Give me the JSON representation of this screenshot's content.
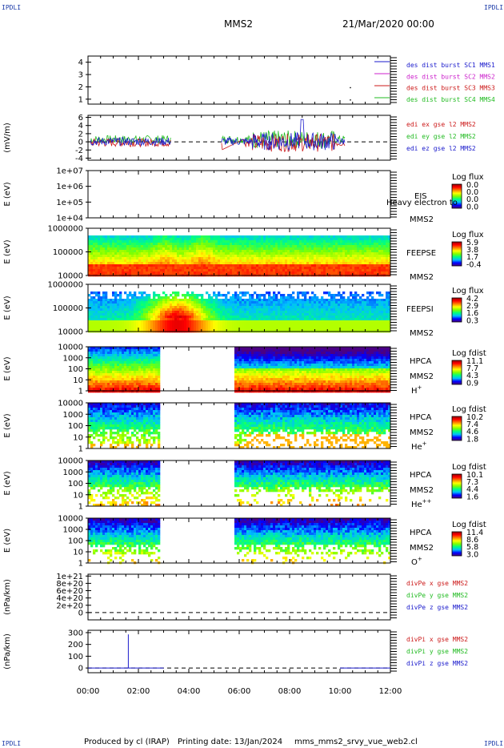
{
  "header": {
    "corner_label": "IPDLI",
    "spacecraft": "MMS2",
    "date": "21/Mar/2020 00:00"
  },
  "footer": {
    "produced": "Produced by cl (IRAP)",
    "printing": "Printing date: 13/Jan/2024",
    "script": "mms_mms2_srvy_vue_web2.cl"
  },
  "chart_data": [
    {
      "type": "line",
      "panel": "burst-flags",
      "yticks": [
        "1",
        "2",
        "3",
        "4"
      ],
      "ylim": [
        0.6,
        4.5
      ],
      "legend": [
        {
          "text": "des dist burst SC1 MMS1",
          "color": "#1a1acc"
        },
        {
          "text": "des dist burst SC2 MMS2",
          "color": "#cc22cc"
        },
        {
          "text": "des dist burst SC3 MMS3",
          "color": "#cc1a1a"
        },
        {
          "text": "des dist burst SC4 MMS4",
          "color": "#22bb22"
        }
      ]
    },
    {
      "type": "line",
      "panel": "edi-e-field",
      "ylabel": "(mV/m)",
      "yticks": [
        "-4",
        "-2",
        "0",
        "2",
        "4",
        "6"
      ],
      "ylim": [
        -4.5,
        6.5
      ],
      "legend": [
        {
          "text": "edi ex gse l2 MMS2",
          "color": "#cc1a1a"
        },
        {
          "text": "edi ey gse l2 MMS2",
          "color": "#22bb22"
        },
        {
          "text": "edi ez gse l2 MMS2",
          "color": "#1a1acc"
        }
      ]
    },
    {
      "type": "heatmap",
      "panel": "eis",
      "ylabel": "E (eV)",
      "yticks": [
        "1e+04",
        "1e+05",
        "1e+06",
        "1e+07"
      ],
      "labels": [
        "EIS",
        "MMS2"
      ],
      "overlay_text": "Heavy electron to",
      "cb_title": "Log flux",
      "cb_ticks": [
        "0.0",
        "0.0",
        "0.0",
        "0.0"
      ]
    },
    {
      "type": "heatmap",
      "panel": "feepse",
      "ylabel": "E (eV)",
      "yticks": [
        "10000",
        "100000",
        "1000000"
      ],
      "labels": [
        "FEEPSE",
        "MMS2"
      ],
      "cb_title": "Log flux",
      "cb_ticks": [
        "5.9",
        "3.8",
        "1.7",
        "-0.4"
      ]
    },
    {
      "type": "heatmap",
      "panel": "feepsi",
      "ylabel": "E (eV)",
      "yticks": [
        "10000",
        "100000",
        "1000000"
      ],
      "labels": [
        "FEEPSI",
        "MMS2"
      ],
      "cb_title": "Log flux",
      "cb_ticks": [
        "4.2",
        "2.9",
        "1.6",
        "0.3"
      ]
    },
    {
      "type": "heatmap",
      "panel": "hpca-h",
      "ylabel": "E (eV)",
      "yticks": [
        "1",
        "10",
        "100",
        "1000",
        "10000"
      ],
      "labels": [
        "HPCA",
        "MMS2"
      ],
      "species": "H",
      "species_sup": "+",
      "cb_title": "Log fdist",
      "cb_ticks": [
        "11.1",
        "7.7",
        "4.3",
        "0.9"
      ]
    },
    {
      "type": "heatmap",
      "panel": "hpca-he",
      "ylabel": "E (eV)",
      "yticks": [
        "1",
        "10",
        "100",
        "1000",
        "10000"
      ],
      "labels": [
        "HPCA",
        "MMS2"
      ],
      "species": "He",
      "species_sup": "+",
      "cb_title": "Log fdist",
      "cb_ticks": [
        "10.2",
        "7.4",
        "4.6",
        "1.8"
      ]
    },
    {
      "type": "heatmap",
      "panel": "hpca-he2",
      "ylabel": "E (eV)",
      "yticks": [
        "1",
        "10",
        "100",
        "1000",
        "10000"
      ],
      "labels": [
        "HPCA",
        "MMS2"
      ],
      "species": "He",
      "species_sup": "++",
      "cb_title": "Log fdist",
      "cb_ticks": [
        "10.1",
        "7.3",
        "4.4",
        "1.6"
      ]
    },
    {
      "type": "heatmap",
      "panel": "hpca-o",
      "ylabel": "E (eV)",
      "yticks": [
        "1",
        "10",
        "100",
        "1000",
        "10000"
      ],
      "labels": [
        "HPCA",
        "MMS2"
      ],
      "species": "O",
      "species_sup": "+",
      "cb_title": "Log fdist",
      "cb_ticks": [
        "11.4",
        "8.6",
        "5.8",
        "3.0"
      ]
    },
    {
      "type": "line",
      "panel": "divpe",
      "ylabel": "(nPa/km)",
      "yticks": [
        "0",
        "2e+20",
        "4e+20",
        "6e+20",
        "8e+20",
        "1e+21"
      ],
      "ylim": [
        -0.2,
        1.05
      ],
      "legend": [
        {
          "text": "divPe x gse MMS2",
          "color": "#cc1a1a"
        },
        {
          "text": "divPe y gse MMS2",
          "color": "#22bb22"
        },
        {
          "text": "divPe z gse MMS2",
          "color": "#1a1acc"
        }
      ]
    },
    {
      "type": "line",
      "panel": "divpi",
      "ylabel": "(nPa/km)",
      "yticks": [
        "0",
        "100",
        "200",
        "300"
      ],
      "ylim": [
        -40,
        320
      ],
      "spike": {
        "x_hours": 1.6,
        "y": 285
      },
      "legend": [
        {
          "text": "divPi x gse MMS2",
          "color": "#cc1a1a"
        },
        {
          "text": "divPi y gse MMS2",
          "color": "#22bb22"
        },
        {
          "text": "divPi z gse MMS2",
          "color": "#1a1acc"
        }
      ]
    }
  ],
  "time_axis": {
    "ticks": [
      "00:00",
      "02:00",
      "04:00",
      "06:00",
      "08:00",
      "10:00",
      "12:00"
    ],
    "range_hours": [
      0,
      12
    ]
  },
  "colors": {
    "axis": "#000000",
    "colorbar": [
      "#4b0082",
      "#0000ff",
      "#00bfff",
      "#00ff80",
      "#80ff00",
      "#ffff00",
      "#ff8000",
      "#ff0000",
      "#8b0000"
    ]
  }
}
